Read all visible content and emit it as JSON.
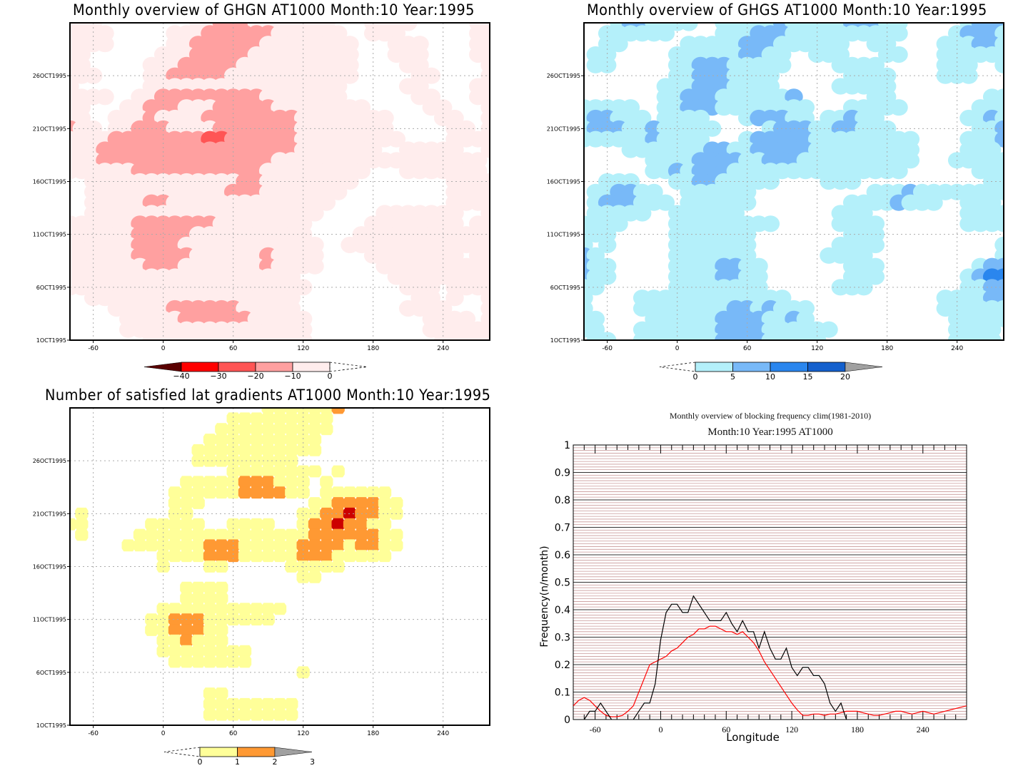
{
  "chart_data": [
    {
      "id": "ghgn",
      "type": "heatmap",
      "title": "Monthly overview of GHGN AT1000 Month:10 Year:1995",
      "xlabel": "",
      "ylabel": "",
      "x_ticks": [
        -60,
        0,
        60,
        120,
        180,
        240
      ],
      "x_tick_labels": [
        "-60",
        "0",
        "60",
        "120",
        "180",
        "240"
      ],
      "y_ticks": [
        1,
        6,
        11,
        16,
        21,
        26
      ],
      "y_tick_labels": [
        "1OCT1995",
        "6OCT1995",
        "11OCT1995",
        "16OCT1995",
        "21OCT1995",
        "26OCT1995"
      ],
      "xlim": [
        -80,
        280
      ],
      "ylim": [
        1,
        31
      ],
      "grid": true,
      "colorbar": {
        "levels": [
          "-40",
          "-30",
          "-20",
          "-10",
          "0"
        ],
        "colors": [
          "#5a0000",
          "#ff0000",
          "#ff5555",
          "#ffa0a0",
          "#ffeded"
        ],
        "extend": "min"
      },
      "grid_x": [
        -80,
        -70,
        -60,
        -50,
        -40,
        -30,
        -20,
        -10,
        0,
        10,
        20,
        30,
        40,
        50,
        60,
        70,
        80,
        90,
        100,
        110,
        120,
        130,
        140,
        150,
        160,
        170,
        180,
        190,
        200,
        210,
        220,
        230,
        240,
        250,
        260,
        270,
        280
      ],
      "grid_y_dates": [
        31,
        30,
        29,
        28,
        27,
        26,
        25,
        24,
        23,
        22,
        21,
        20,
        19,
        18,
        17,
        16,
        15,
        14,
        13,
        12,
        11,
        10,
        9,
        8,
        7,
        6,
        5,
        4,
        3,
        2,
        1
      ],
      "levels_grid": [
        "1110000000011222111111100011110000011",
        "1111000001112222221111110011100000011",
        "1111000001122222211111111000111000011",
        "1100000011122222111111111000111000011",
        "1100000111222221111111111000011000001",
        "1110000112222211111111111000001100001",
        "1000000111111111111111110000011000011",
        "1111001122222222211111110000001100011",
        "1100011222111222221111111100000110001",
        "1100111211112222222211111111000011001",
        "2110112221111222222211111111000001101",
        "1111222222223322222211111111100001111",
        "1112222222222222222211111110011111001",
        "1112222222222222221111111111111111110",
        "1111112222222222211111111100011111110",
        "0011111111111112211111111000000001111",
        "0011111111111122211111110000000001111",
        "0011111221111111111111100000000001111",
        "0011111111111111111111000001111111001",
        "1111112222222111111110000011111111011",
        "1111112222211111111110000111111111111",
        "1111112222111111111111001111111111111",
        "1111112222211111121111000011111111011",
        "1111111222111111121111000001111111111",
        "1111111111111111111100000000111111111",
        "1111111111111111111110000000011101111",
        "0011111111111111111100000000001101001",
        "0000111112222221111100000000011110001",
        "0000011111222222111110000000000111101",
        "0000011111111111111110000000000111111",
        "0000000111111111111110000000000011111"
      ]
    },
    {
      "id": "ghgs",
      "type": "heatmap",
      "title": "Monthly overview of GHGS AT1000 Month:10 Year:1995",
      "xlabel": "",
      "ylabel": "",
      "x_ticks": [
        -60,
        0,
        60,
        120,
        180,
        240
      ],
      "x_tick_labels": [
        "-60",
        "0",
        "60",
        "120",
        "180",
        "240"
      ],
      "y_ticks": [
        1,
        6,
        11,
        16,
        21,
        26
      ],
      "y_tick_labels": [
        "1OCT1995",
        "6OCT1995",
        "11OCT1995",
        "16OCT1995",
        "21OCT1995",
        "26OCT1995"
      ],
      "xlim": [
        -80,
        280
      ],
      "ylim": [
        1,
        31
      ],
      "grid": true,
      "colorbar": {
        "levels": [
          "0",
          "5",
          "10",
          "15",
          "20"
        ],
        "colors": [
          "#b4f0fa",
          "#78b9f8",
          "#2a86ee",
          "#1460cd",
          "#a0a0a0"
        ],
        "extend": "max"
      },
      "grid_x": [
        -80,
        -70,
        -60,
        -50,
        -40,
        -30,
        -20,
        -10,
        0,
        10,
        20,
        30,
        40,
        50,
        60,
        70,
        80,
        90,
        100,
        110,
        120,
        130,
        140,
        150,
        160,
        170,
        180,
        190,
        200,
        210,
        220,
        230,
        240,
        250,
        260,
        270,
        280
      ],
      "grid_y_dates": [
        31,
        30,
        29,
        28,
        27,
        26,
        25,
        24,
        23,
        22,
        21,
        20,
        19,
        18,
        17,
        16,
        15,
        14,
        13,
        12,
        11,
        10,
        9,
        8,
        7,
        6,
        5,
        4,
        3,
        2,
        1
      ],
      "levels_grid": [
        "0001221111001111121111122211000001222",
        "0011111100001112221111111111000012221",
        "0011000001111122211111100110000111221",
        "0110000011111122110011100011000111111",
        "0110000011222111110000111100000111001",
        "0000000011222111100000011110000111000",
        "0000000111222111100000111110000000000",
        "0000000112221111112000000110000000011",
        "1111100112221111111100011111000000111",
        "1221110111100012221101121100000001121",
        "1222112111110000122211221110000000112",
        "1111112111100012222211111111100001112",
        "0000111111122112222211111111100001110",
        "0000001111222211222111111111100011111",
        "0000001121222111111111111111000000111",
        "0011100011221111100001110000000000011",
        "0112211001111110000000000111211111111",
        "0122211101111110000000011112111001110",
        "0111110011111100000000111000000001111",
        "1111000011111111100000111100000001111",
        "1110000011111110000000011100000000000",
        "1010000011111110000000111100000000001",
        "2100000011111110000001111000000000001",
        "2110000011112211000000011100000000122",
        "2110000011112211000000011100000001233",
        "1100000011111111000000111000000001122",
        "1000011111111111110000000000000111122",
        "1000011111111221211100000000000111111",
        "1100001111112222112100000000000011111",
        "1100011111112222111111000000000011110",
        "0110011111112222111110000000000011110"
      ]
    },
    {
      "id": "gradients",
      "type": "heatmap",
      "title": "Number of satisfied lat gradients AT1000 Month:10 Year:1995",
      "xlabel": "",
      "ylabel": "",
      "x_ticks": [
        -60,
        0,
        60,
        120,
        180,
        240
      ],
      "x_tick_labels": [
        "-60",
        "0",
        "60",
        "120",
        "180",
        "240"
      ],
      "y_ticks": [
        1,
        6,
        11,
        16,
        21,
        26
      ],
      "y_tick_labels": [
        "1OCT1995",
        "6OCT1995",
        "11OCT1995",
        "16OCT1995",
        "21OCT1995",
        "26OCT1995"
      ],
      "xlim": [
        -80,
        280
      ],
      "ylim": [
        1,
        31
      ],
      "grid": true,
      "colorbar": {
        "levels": [
          "0",
          "1",
          "2",
          "3"
        ],
        "colors": [
          "#ffff99",
          "#ff9933",
          "#cc0000",
          "#a0a0a0"
        ],
        "extend": "max"
      },
      "grid_x": [
        -80,
        -70,
        -60,
        -50,
        -40,
        -30,
        -20,
        -10,
        0,
        10,
        20,
        30,
        40,
        50,
        60,
        70,
        80,
        90,
        100,
        110,
        120,
        130,
        140,
        150,
        160,
        170,
        180,
        190,
        200,
        210,
        220,
        230,
        240,
        250,
        260,
        270,
        280
      ],
      "grid_y_dates": [
        31,
        30,
        29,
        28,
        27,
        26,
        25,
        24,
        23,
        22,
        21,
        20,
        19,
        18,
        17,
        16,
        15,
        14,
        13,
        12,
        11,
        10,
        9,
        8,
        7,
        6,
        5,
        4,
        3,
        2,
        1
      ],
      "levels_grid": [
        "0000000000000000011111120000000000000",
        "0000000000000011111111100000000000000",
        "0000000000000111111111100000000000000",
        "0000000000001111111111000000000000000",
        "0000000000011111111111000000000000000",
        "0000000000011111111100000000000000000",
        "0000000000000011111111010000000000000",
        "0000000000111112221110100000000000000",
        "0000000001111112222110111111000000000",
        "0000000001110000000001122221100000000",
        "0100000001100000000011223221100000000",
        "1100000111110011110012232211000000000",
        "0100001111111111111112222221100000000",
        "0000011111112221111122221221100000000",
        "0000000011112221111122211111000000000",
        "0000000010001100000111110000000000000",
        "0000000000000000000011000000000000000",
        "0000000000111100000000000000000000000",
        "0000000000111100000000000000000000000",
        "0000000011111111111000000000000000000",
        "0000000112221111110000000000000000000",
        "0000000112221100000000000000000000000",
        "0000000011211100000000000000000000000",
        "0000000011111111000000000000000000000",
        "0000000001111111000000000000000000000",
        "0000000000000000000010000000000000000",
        "0000000000000000000000000000000000000",
        "0000000000001100000000000000000000000",
        "0000000000001111111100000000000000000",
        "0000000000001111111100000000000000000",
        "0000000000000000000000000000000000000"
      ]
    },
    {
      "id": "blocking",
      "type": "line",
      "title": "Monthly overview of blocking frequency clim(1981-2010)",
      "subtitle": "Month:10 Year:1995  AT1000",
      "xlabel": "Longitude",
      "ylabel": "Frequency(n/month)",
      "xlim": [
        -80,
        280
      ],
      "ylim": [
        0,
        1
      ],
      "x_ticks": [
        -60,
        0,
        60,
        120,
        180,
        240
      ],
      "x_tick_labels": [
        "-60",
        "0",
        "60",
        "120",
        "180",
        "240"
      ],
      "y_ticks": [
        0,
        0.1,
        0.2,
        0.3,
        0.4,
        0.5,
        0.6,
        0.7,
        0.8,
        0.9,
        1
      ],
      "y_tick_labels": [
        "0",
        "0.1",
        "0.2",
        "0.3",
        "0.4",
        "0.5",
        "0.6",
        "0.7",
        "0.8",
        "0.9",
        "1"
      ],
      "grid": true,
      "x": [
        -80,
        -75,
        -70,
        -65,
        -60,
        -55,
        -50,
        -45,
        -40,
        -35,
        -30,
        -25,
        -20,
        -15,
        -10,
        -5,
        0,
        5,
        10,
        15,
        20,
        25,
        30,
        35,
        40,
        45,
        50,
        55,
        60,
        65,
        70,
        75,
        80,
        85,
        90,
        95,
        100,
        105,
        110,
        115,
        120,
        125,
        130,
        135,
        140,
        145,
        150,
        155,
        160,
        165,
        170,
        175,
        180,
        185,
        190,
        195,
        200,
        205,
        210,
        215,
        220,
        225,
        230,
        235,
        240,
        245,
        250,
        255,
        260,
        265,
        270,
        275,
        280
      ],
      "series": [
        {
          "name": "Month:10 Year:1995",
          "color": "#000000",
          "values": [
            null,
            null,
            0.0,
            0.03,
            0.03,
            0.06,
            0.03,
            0.0,
            null,
            null,
            null,
            0.0,
            0.03,
            0.06,
            0.06,
            0.13,
            0.29,
            0.39,
            0.42,
            0.42,
            0.39,
            0.39,
            0.45,
            0.42,
            0.39,
            0.36,
            0.36,
            0.36,
            0.39,
            0.35,
            0.32,
            0.36,
            0.32,
            0.32,
            0.26,
            0.32,
            0.26,
            0.22,
            0.22,
            0.26,
            0.19,
            0.16,
            0.19,
            0.19,
            0.16,
            0.16,
            0.13,
            0.06,
            0.03,
            0.06,
            0.0,
            null,
            null,
            null,
            null,
            null,
            null,
            null,
            null,
            null,
            null,
            null,
            null,
            null,
            null,
            null,
            null,
            null,
            null,
            null,
            null,
            null,
            null
          ]
        },
        {
          "name": "clim(1981-2010)",
          "color": "#ff0000",
          "values": [
            0.05,
            0.07,
            0.08,
            0.07,
            0.05,
            0.03,
            0.015,
            0.01,
            0.01,
            0.015,
            0.03,
            0.05,
            0.1,
            0.15,
            0.2,
            0.21,
            0.22,
            0.23,
            0.25,
            0.26,
            0.28,
            0.3,
            0.31,
            0.33,
            0.33,
            0.34,
            0.34,
            0.33,
            0.32,
            0.32,
            0.31,
            0.32,
            0.3,
            0.28,
            0.25,
            0.21,
            0.18,
            0.15,
            0.12,
            0.09,
            0.06,
            0.035,
            0.015,
            0.015,
            0.02,
            0.02,
            0.015,
            0.02,
            0.02,
            0.025,
            0.03,
            0.03,
            0.03,
            0.025,
            0.02,
            0.015,
            0.015,
            0.02,
            0.025,
            0.03,
            0.03,
            0.025,
            0.02,
            0.025,
            0.03,
            0.025,
            0.02,
            0.025,
            0.03,
            0.035,
            0.04,
            0.045,
            0.05
          ]
        }
      ]
    }
  ]
}
